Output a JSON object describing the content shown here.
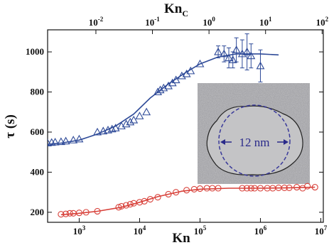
{
  "chart_data": {
    "type": "scatter",
    "xlabel": "Kn",
    "ylabel": "τ (s)",
    "x2label": "Kn",
    "x2label_subscript": "C",
    "xscale": "log",
    "x2scale": "log",
    "xlim": [
      300,
      11000000
    ],
    "ylim": [
      150,
      1110
    ],
    "x2lim": [
      0.0014,
      105
    ],
    "xticks": [
      {
        "value": 1000,
        "label": "103"
      },
      {
        "value": 10000,
        "label": "104"
      },
      {
        "value": 100000,
        "label": "105"
      },
      {
        "value": 1000000,
        "label": "106"
      },
      {
        "value": 10000000,
        "label": "107"
      }
    ],
    "x2ticks": [
      {
        "value": 0.01,
        "label": "10-2"
      },
      {
        "value": 0.1,
        "label": "10-1"
      },
      {
        "value": 1,
        "label": "100"
      },
      {
        "value": 10,
        "label": "101"
      },
      {
        "value": 100,
        "label": "102"
      }
    ],
    "yticks": [
      200,
      400,
      600,
      800,
      1000
    ],
    "annotations": [
      "12 nm"
    ],
    "series": [
      {
        "marker": "triangle",
        "color": "#2e4a98",
        "x": [
          250,
          300,
          350,
          400,
          500,
          600,
          800,
          1000,
          2000,
          2500,
          3000,
          3500,
          4000,
          5000,
          6000,
          7000,
          8000,
          10000,
          13000,
          20000,
          22000,
          25000,
          30000,
          35000,
          40000,
          50000,
          60000,
          70000,
          100000,
          200000,
          250000,
          300000,
          350000,
          400000,
          500000,
          600000,
          700000,
          1000000
        ],
        "values": [
          550,
          545,
          548,
          550,
          552,
          555,
          560,
          565,
          600,
          605,
          610,
          615,
          620,
          630,
          640,
          650,
          660,
          680,
          700,
          800,
          810,
          820,
          830,
          845,
          860,
          880,
          890,
          905,
          940,
          1000,
          990,
          970,
          960,
          1010,
          990,
          1000,
          980,
          930
        ],
        "errors": [
          null,
          null,
          null,
          null,
          null,
          null,
          null,
          null,
          null,
          null,
          null,
          null,
          null,
          null,
          null,
          null,
          null,
          null,
          null,
          null,
          null,
          null,
          null,
          null,
          null,
          null,
          null,
          null,
          null,
          30,
          40,
          50,
          40,
          60,
          70,
          90,
          60,
          80
        ]
      },
      {
        "marker": "none",
        "color": "#2e4a98",
        "x": [
          220,
          500,
          1000,
          2000,
          4000,
          8000,
          15000,
          30000,
          60000,
          100000,
          200000,
          400000,
          1000000,
          2000000
        ],
        "values": [
          535,
          545,
          560,
          590,
          630,
          690,
          770,
          840,
          900,
          940,
          975,
          990,
          990,
          985
        ]
      },
      {
        "marker": "circle",
        "color": "#d8413a",
        "x": [
          500,
          600,
          700,
          800,
          1000,
          1300,
          2000,
          4500,
          5000,
          6000,
          7000,
          8000,
          10000,
          12000,
          15000,
          20000,
          30000,
          40000,
          60000,
          80000,
          100000,
          130000,
          160000,
          200000,
          500000,
          600000,
          700000,
          800000,
          1000000,
          1300000,
          1600000,
          2000000,
          2500000,
          3000000,
          4000000,
          5000000,
          6000000,
          8000000
        ],
        "values": [
          190,
          192,
          195,
          195,
          197,
          200,
          205,
          225,
          230,
          235,
          240,
          245,
          250,
          255,
          265,
          275,
          290,
          300,
          310,
          315,
          318,
          320,
          320,
          320,
          320,
          320,
          320,
          320,
          320,
          320,
          320,
          322,
          322,
          322,
          325,
          320,
          330,
          325
        ]
      },
      {
        "marker": "none",
        "color": "#d8413a",
        "x": [
          500,
          1000,
          2000,
          5000,
          10000,
          20000,
          50000,
          100000,
          300000,
          1000000,
          3000000,
          8000000
        ],
        "values": [
          188,
          195,
          205,
          225,
          250,
          278,
          305,
          315,
          320,
          320,
          322,
          325
        ]
      }
    ]
  }
}
